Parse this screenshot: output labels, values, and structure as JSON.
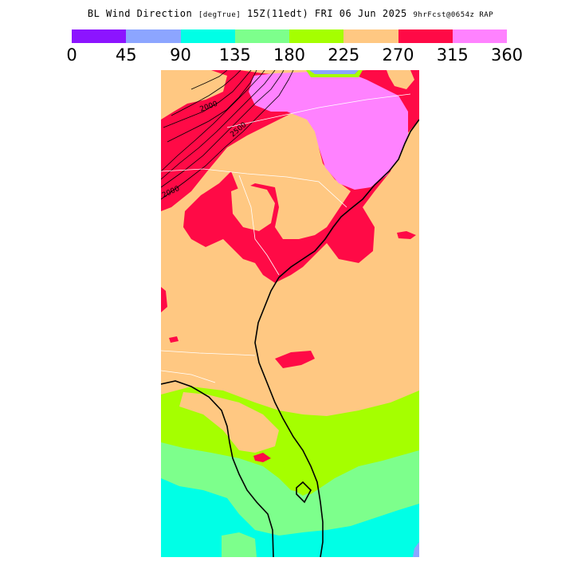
{
  "title": {
    "main": "BL Wind Direction",
    "unit": "[degTrue]",
    "valid": "15Z(11edt) FRI 06 Jun 2025",
    "forecast": "9hrFcst@0654z RAP"
  },
  "legend": {
    "ticks": [
      "0",
      "45",
      "90",
      "135",
      "180",
      "225",
      "270",
      "315",
      "360"
    ],
    "colors": [
      "#8c14ff",
      "#8ca5ff",
      "#00ffe6",
      "#7dff8c",
      "#a5ff00",
      "#ffc882",
      "#ff0a46",
      "#ff82ff"
    ]
  },
  "map": {
    "contour_labels": [
      "2000",
      "2000",
      "2500"
    ],
    "colors": {
      "d315_360": "#ff82ff",
      "d270_315": "#ff0a46",
      "d225_270": "#ffc882",
      "d180_225": "#a5ff00",
      "d135_180": "#7dff8c",
      "d90_135": "#00ffe6",
      "d45_90": "#8ca5ff"
    }
  }
}
